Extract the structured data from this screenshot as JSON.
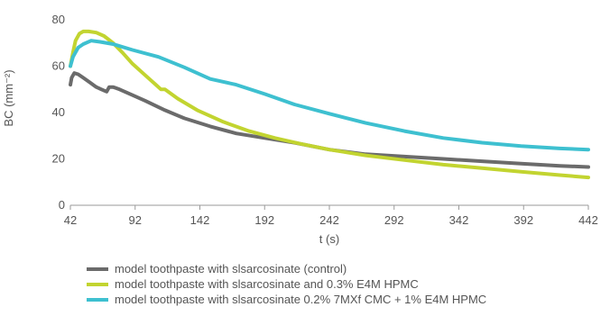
{
  "chart_data": {
    "type": "line",
    "title": "",
    "xlabel": "t (s)",
    "ylabel": "BC (mm⁻²)",
    "xlim": [
      42,
      442
    ],
    "ylim": [
      0,
      80
    ],
    "x_ticks": [
      42,
      92,
      142,
      192,
      242,
      292,
      342,
      392,
      442
    ],
    "y_ticks": [
      0,
      20,
      40,
      60,
      80
    ],
    "grid": false,
    "legend_position": "bottom",
    "series": [
      {
        "name": "model toothpaste with slsarcosinate (control)",
        "color": "#6b6b6b",
        "points": [
          [
            42,
            52
          ],
          [
            43,
            55
          ],
          [
            45,
            57
          ],
          [
            48,
            56.5
          ],
          [
            52,
            55
          ],
          [
            57,
            53
          ],
          [
            62,
            51
          ],
          [
            66,
            50
          ],
          [
            70,
            49
          ],
          [
            72,
            51
          ],
          [
            75,
            51
          ],
          [
            80,
            50
          ],
          [
            90,
            47.5
          ],
          [
            100,
            45
          ],
          [
            115,
            41
          ],
          [
            130,
            37.5
          ],
          [
            150,
            34
          ],
          [
            170,
            31
          ],
          [
            192,
            29
          ],
          [
            215,
            27
          ],
          [
            242,
            24
          ],
          [
            270,
            22
          ],
          [
            300,
            21
          ],
          [
            330,
            20
          ],
          [
            360,
            19
          ],
          [
            390,
            18
          ],
          [
            420,
            17
          ],
          [
            442,
            16.5
          ]
        ]
      },
      {
        "name": "model toothpaste with slsarcosinate and 0.3% E4M HPMC",
        "color": "#c2d430",
        "points": [
          [
            42,
            60
          ],
          [
            44,
            66
          ],
          [
            46,
            71
          ],
          [
            49,
            74
          ],
          [
            52,
            75
          ],
          [
            56,
            75
          ],
          [
            62,
            74.5
          ],
          [
            68,
            73
          ],
          [
            75,
            70
          ],
          [
            82,
            66
          ],
          [
            90,
            61
          ],
          [
            100,
            56
          ],
          [
            108,
            52
          ],
          [
            112,
            50
          ],
          [
            115,
            50
          ],
          [
            125,
            46
          ],
          [
            140,
            41
          ],
          [
            160,
            36
          ],
          [
            180,
            32
          ],
          [
            200,
            29
          ],
          [
            220,
            26.5
          ],
          [
            242,
            24
          ],
          [
            270,
            21.5
          ],
          [
            300,
            19.5
          ],
          [
            330,
            17.5
          ],
          [
            360,
            16
          ],
          [
            390,
            14.5
          ],
          [
            420,
            13
          ],
          [
            442,
            12
          ]
        ]
      },
      {
        "name": "model toothpaste with slsarcosinate 0.2% 7MXf CMC + 1% E4M HPMC",
        "color": "#3ec0d0",
        "points": [
          [
            42,
            60
          ],
          [
            44,
            64
          ],
          [
            48,
            68
          ],
          [
            52,
            69.5
          ],
          [
            58,
            71
          ],
          [
            65,
            70.5
          ],
          [
            75,
            69.5
          ],
          [
            90,
            67
          ],
          [
            110,
            64
          ],
          [
            130,
            59.5
          ],
          [
            150,
            54.5
          ],
          [
            170,
            52
          ],
          [
            192,
            48
          ],
          [
            215,
            43.5
          ],
          [
            242,
            39.5
          ],
          [
            270,
            35.5
          ],
          [
            300,
            32
          ],
          [
            330,
            29
          ],
          [
            360,
            27
          ],
          [
            390,
            25.5
          ],
          [
            420,
            24.5
          ],
          [
            442,
            24
          ]
        ]
      }
    ]
  }
}
